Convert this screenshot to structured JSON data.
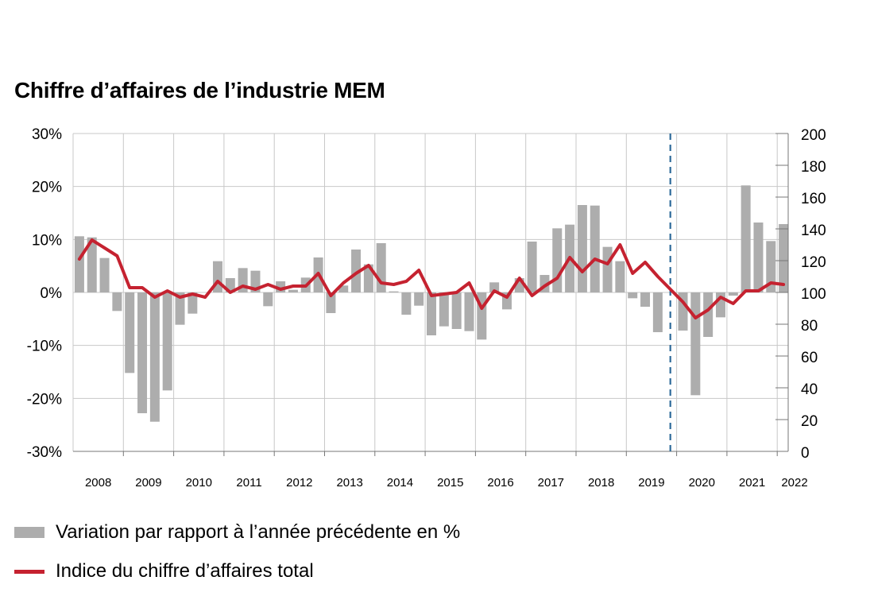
{
  "chart_data": {
    "type": "bar",
    "title": "Chiffre d’affaires de l’industrie MEM",
    "x_ticks": [
      "2008",
      "2009",
      "2010",
      "2011",
      "2012",
      "2013",
      "2014",
      "2015",
      "2016",
      "2017",
      "2018",
      "2019",
      "2020",
      "2021",
      "2022"
    ],
    "y_left": {
      "range": [
        -30,
        30
      ],
      "ticks": [
        "30%",
        "20%",
        "10%",
        "0%",
        "-10%",
        "-20%",
        "-30%"
      ]
    },
    "y_right": {
      "range": [
        0,
        200
      ],
      "ticks": [
        "200",
        "180",
        "160",
        "140",
        "120",
        "100",
        "80",
        "60",
        "40",
        "20",
        "0"
      ]
    },
    "series": [
      {
        "name": "Variation par rapport à l’année précédente en %",
        "kind": "bar",
        "axis": "left",
        "color": "#adadad",
        "values": [
          10.6,
          10.4,
          6.5,
          -3.5,
          -15.2,
          -22.8,
          -24.4,
          -18.5,
          -6.1,
          -4.0,
          0.0,
          5.9,
          2.7,
          4.6,
          4.1,
          -2.6,
          2.1,
          0.5,
          2.8,
          6.6,
          -3.9,
          1.3,
          8.1,
          5.3,
          9.3,
          0.2,
          -4.2,
          -2.5,
          -8.1,
          -6.4,
          -6.9,
          -7.3,
          -8.9,
          1.9,
          -3.2,
          2.7,
          9.6,
          3.3,
          12.1,
          12.8,
          16.5,
          16.4,
          8.6,
          5.9,
          -1.1,
          -2.7,
          -7.5,
          0.0,
          -7.2,
          -19.4,
          -8.4,
          -4.7,
          -0.6,
          20.2,
          13.2,
          9.7,
          12.9
        ]
      },
      {
        "name": "Indice du chiffre d’affaires total",
        "kind": "line",
        "axis": "right",
        "color": "#c52230",
        "values": [
          121,
          133,
          128,
          123,
          103,
          103,
          97,
          101,
          97,
          99,
          97,
          107,
          100,
          104,
          102,
          105,
          102,
          104,
          104,
          112,
          98,
          106,
          112,
          117,
          106,
          105,
          107,
          114,
          98,
          99,
          100,
          106,
          90,
          101,
          97,
          109,
          98,
          104,
          109,
          122,
          113,
          121,
          118,
          130,
          112,
          119,
          110,
          102,
          94,
          84,
          89,
          97,
          93,
          101,
          101,
          106,
          105
        ]
      }
    ],
    "annotations": [
      "dashed vertical line between 2019 and 2020"
    ],
    "grid": true,
    "legend_position": "bottom-left"
  }
}
